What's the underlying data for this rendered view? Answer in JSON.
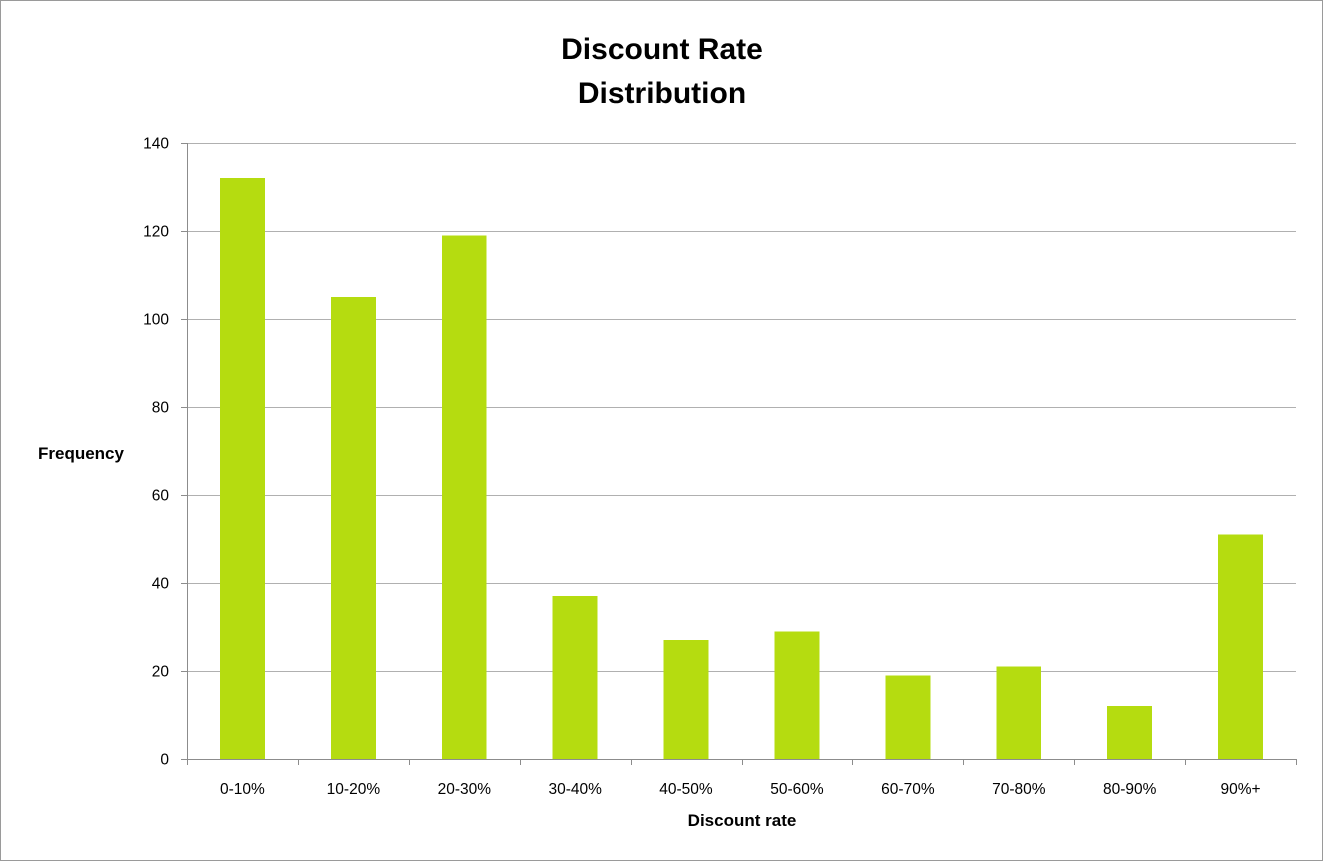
{
  "chart_data": {
    "type": "bar",
    "title": [
      "Discount Rate",
      "Distribution"
    ],
    "xlabel": "Discount rate",
    "ylabel": "Frequency",
    "categories": [
      "0-10%",
      "10-20%",
      "20-30%",
      "30-40%",
      "40-50%",
      "50-60%",
      "60-70%",
      "70-80%",
      "80-90%",
      "90%+"
    ],
    "values": [
      132,
      105,
      119,
      37,
      27,
      29,
      19,
      21,
      12,
      51
    ],
    "ylim": [
      0,
      140
    ],
    "yticks": [
      0,
      20,
      40,
      60,
      80,
      100,
      120,
      140
    ],
    "grid": true,
    "legend": "none",
    "bar_color": "#b5dc10"
  }
}
